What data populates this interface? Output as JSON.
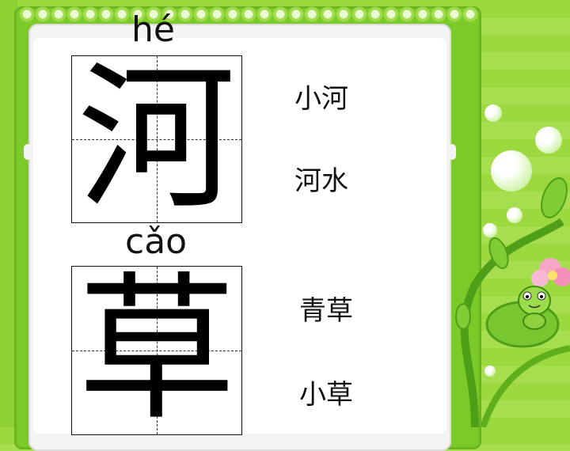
{
  "characters": [
    {
      "pinyin": "hé",
      "hanzi": "河",
      "words": [
        "小河",
        "河水"
      ]
    },
    {
      "pinyin": "cǎo",
      "hanzi": "草",
      "words": [
        "青草",
        "小草"
      ]
    }
  ],
  "colors": {
    "background": "#9bd93e",
    "frame": "#7cc92a",
    "paper": "#ffffff",
    "text": "#111111"
  },
  "decorations": [
    "vine-border",
    "bubble",
    "frog-on-leaf",
    "pink-flower"
  ]
}
